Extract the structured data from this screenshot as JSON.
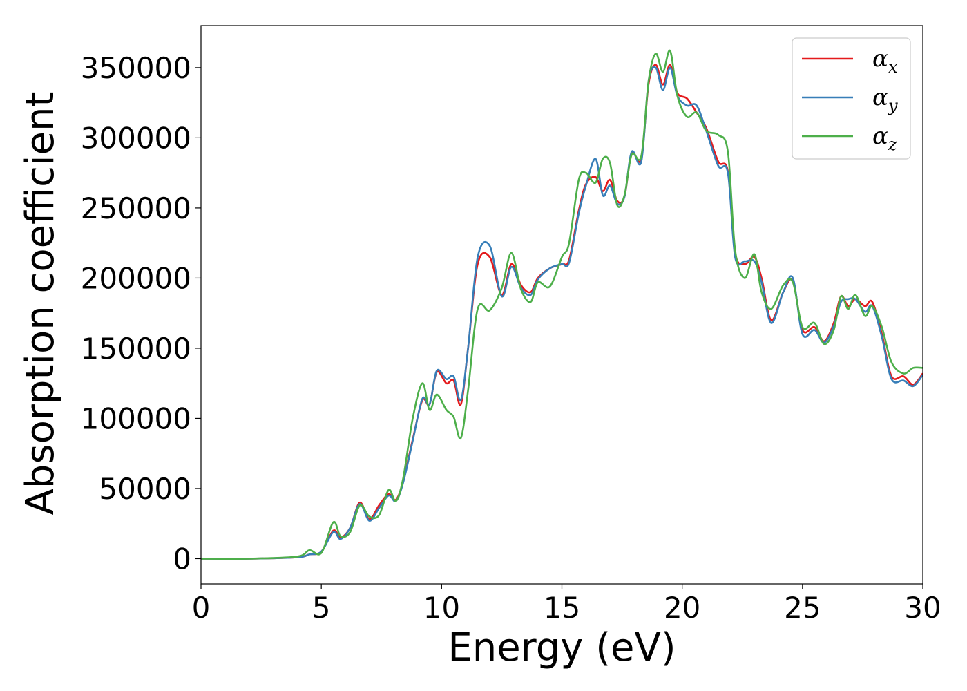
{
  "chart_data": {
    "type": "line",
    "xlabel": "Energy (eV)",
    "ylabel": "Absorption coefficient",
    "xlim": [
      0,
      30
    ],
    "ylim": [
      -18000,
      380000
    ],
    "xticks": [
      0,
      5,
      10,
      15,
      20,
      25,
      30
    ],
    "yticks": [
      0,
      50000,
      100000,
      150000,
      200000,
      250000,
      300000,
      350000
    ],
    "grid": false,
    "legend": {
      "placement": "top-right"
    },
    "series": [
      {
        "name": "α_x",
        "label_base": "α",
        "label_sub": "x",
        "color": "#e41a1c",
        "x": [
          0,
          2,
          4,
          4.5,
          5.0,
          5.5,
          5.8,
          6.2,
          6.6,
          7.0,
          7.4,
          7.8,
          8.1,
          8.4,
          8.8,
          9.2,
          9.5,
          9.8,
          10.2,
          10.5,
          10.8,
          11.1,
          11.5,
          12.0,
          12.5,
          12.9,
          13.3,
          13.7,
          14.0,
          14.5,
          15.0,
          15.3,
          15.7,
          16.0,
          16.4,
          16.7,
          17.0,
          17.3,
          17.6,
          17.9,
          18.3,
          18.6,
          18.9,
          19.2,
          19.5,
          19.8,
          20.2,
          20.6,
          21.0,
          21.5,
          21.9,
          22.2,
          22.6,
          23.0,
          23.3,
          23.7,
          24.2,
          24.6,
          25.0,
          25.5,
          25.9,
          26.3,
          26.6,
          26.9,
          27.2,
          27.6,
          27.9,
          28.3,
          28.7,
          29.2,
          29.6,
          30.0
        ],
        "y": [
          0,
          0,
          1000,
          3000,
          5000,
          20000,
          15000,
          22000,
          40000,
          28000,
          38000,
          46000,
          42000,
          55000,
          85000,
          113000,
          110000,
          133000,
          125000,
          127000,
          110000,
          150000,
          210000,
          215000,
          188000,
          210000,
          195000,
          190000,
          200000,
          207000,
          210000,
          213000,
          248000,
          267000,
          272000,
          262000,
          270000,
          255000,
          258000,
          289000,
          285000,
          338000,
          352000,
          338000,
          352000,
          332000,
          328000,
          318000,
          307000,
          283000,
          276000,
          218000,
          210000,
          215000,
          200000,
          170000,
          190000,
          198000,
          163000,
          165000,
          155000,
          168000,
          187000,
          180000,
          185000,
          180000,
          183000,
          160000,
          130000,
          130000,
          124000,
          132000
        ]
      },
      {
        "name": "α_y",
        "label_base": "α",
        "label_sub": "y",
        "color": "#377eb8",
        "x": [
          0,
          2,
          4,
          4.5,
          5.0,
          5.5,
          5.8,
          6.2,
          6.6,
          7.0,
          7.4,
          7.8,
          8.1,
          8.4,
          8.8,
          9.2,
          9.5,
          9.8,
          10.2,
          10.5,
          10.8,
          11.1,
          11.5,
          12.0,
          12.5,
          12.9,
          13.3,
          13.7,
          14.0,
          14.5,
          15.0,
          15.3,
          15.7,
          16.0,
          16.4,
          16.7,
          17.0,
          17.3,
          17.6,
          17.9,
          18.3,
          18.6,
          18.9,
          19.2,
          19.5,
          19.8,
          20.2,
          20.6,
          21.0,
          21.5,
          21.9,
          22.2,
          22.6,
          23.0,
          23.3,
          23.7,
          24.2,
          24.6,
          25.0,
          25.5,
          25.9,
          26.3,
          26.6,
          26.9,
          27.2,
          27.6,
          27.9,
          28.3,
          28.7,
          29.2,
          29.6,
          30.0
        ],
        "y": [
          0,
          0,
          1000,
          3000,
          5000,
          19000,
          14000,
          22000,
          39000,
          27000,
          36000,
          45000,
          41000,
          54000,
          84000,
          114000,
          110000,
          134000,
          128000,
          130000,
          113000,
          150000,
          215000,
          223000,
          187000,
          208000,
          193000,
          188000,
          199000,
          207000,
          210000,
          211000,
          246000,
          266000,
          285000,
          259000,
          266000,
          253000,
          258000,
          290000,
          283000,
          340000,
          350000,
          334000,
          350000,
          330000,
          323000,
          323000,
          305000,
          280000,
          275000,
          215000,
          212000,
          212000,
          197000,
          168000,
          190000,
          200000,
          160000,
          163000,
          154000,
          166000,
          183000,
          185000,
          185000,
          176000,
          180000,
          158000,
          128000,
          127000,
          123000,
          131000
        ]
      },
      {
        "name": "α_z",
        "label_base": "α",
        "label_sub": "z",
        "color": "#4daf4a",
        "x": [
          0,
          2,
          4,
          4.5,
          5.0,
          5.5,
          5.8,
          6.2,
          6.6,
          7.0,
          7.4,
          7.8,
          8.1,
          8.4,
          8.8,
          9.2,
          9.5,
          9.8,
          10.2,
          10.5,
          10.8,
          11.1,
          11.5,
          12.0,
          12.5,
          12.9,
          13.3,
          13.7,
          14.0,
          14.5,
          15.0,
          15.3,
          15.7,
          16.0,
          16.4,
          16.7,
          17.0,
          17.3,
          17.6,
          17.9,
          18.3,
          18.6,
          18.9,
          19.2,
          19.5,
          19.8,
          20.2,
          20.6,
          21.0,
          21.5,
          21.9,
          22.2,
          22.6,
          23.0,
          23.3,
          23.7,
          24.2,
          24.6,
          25.0,
          25.5,
          25.9,
          26.3,
          26.6,
          26.9,
          27.2,
          27.6,
          27.9,
          28.3,
          28.7,
          29.2,
          29.6,
          30.0
        ],
        "y": [
          0,
          0,
          1500,
          6000,
          4000,
          26000,
          16000,
          19000,
          38000,
          30000,
          31000,
          49000,
          41000,
          57000,
          100000,
          125000,
          106000,
          117000,
          106000,
          101000,
          86000,
          120000,
          178000,
          177000,
          193000,
          218000,
          192000,
          183000,
          197000,
          194000,
          215000,
          225000,
          270000,
          275000,
          268000,
          285000,
          282000,
          252000,
          259000,
          288000,
          287000,
          340000,
          360000,
          347000,
          362000,
          330000,
          315000,
          318000,
          305000,
          302000,
          290000,
          220000,
          200000,
          217000,
          190000,
          178000,
          195000,
          197000,
          165000,
          168000,
          153000,
          163000,
          187000,
          178000,
          188000,
          173000,
          180000,
          165000,
          140000,
          132000,
          136000,
          136000
        ]
      }
    ]
  }
}
